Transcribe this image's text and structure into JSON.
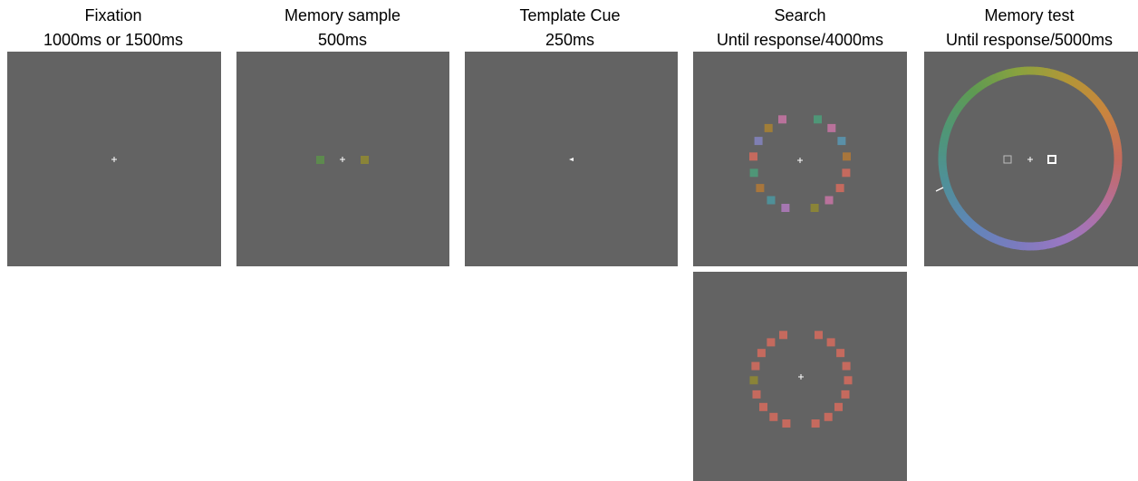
{
  "figure": {
    "panel_color": "#636363",
    "fixation_color": "#ffffff",
    "stages": [
      {
        "title": "Fixation",
        "duration": "1000ms or 1500ms"
      },
      {
        "title": "Memory sample",
        "duration": "500ms"
      },
      {
        "title": "Template Cue",
        "duration": "250ms"
      },
      {
        "title": "Search",
        "duration": "Until response/4000ms"
      },
      {
        "title": "Memory test",
        "duration": "Until response/5000ms"
      }
    ],
    "memory_sample": {
      "left_square_color": "#5d8a4e",
      "right_square_color": "#8a8438"
    },
    "search_mixed": {
      "left_arc_colors": [
        "#b9729b",
        "#a07e38",
        "#7f7fb3",
        "#c56a5e",
        "#4f9677",
        "#a8763c",
        "#4f9098",
        "#a677b1"
      ],
      "right_arc_colors": [
        "#4f9677",
        "#b9729b",
        "#5a90a8",
        "#a8763c",
        "#c56a5e",
        "#c56a5e",
        "#b9729b",
        "#8a8438"
      ]
    },
    "search_uniform": {
      "left_arc_colors": [
        "#c56a5e",
        "#c56a5e",
        "#c56a5e",
        "#c56a5e",
        "#8a8438",
        "#c56a5e",
        "#c56a5e",
        "#c56a5e",
        "#c56a5e"
      ],
      "right_arc_colors": [
        "#c56a5e",
        "#c56a5e",
        "#c56a5e",
        "#c56a5e",
        "#c56a5e",
        "#c56a5e",
        "#c56a5e",
        "#c56a5e",
        "#c56a5e"
      ]
    },
    "memory_test": {
      "wheel_colors": [
        "#c46a5e",
        "#b46fa0",
        "#9b77c2",
        "#7b7bbf",
        "#5f86b8",
        "#4f9098",
        "#4f9677",
        "#5f9a52",
        "#8aa23f",
        "#b39637",
        "#c9853e",
        "#c46a5e"
      ],
      "probe_left": "#bcbcbc",
      "probe_right": "#ffffff"
    }
  }
}
